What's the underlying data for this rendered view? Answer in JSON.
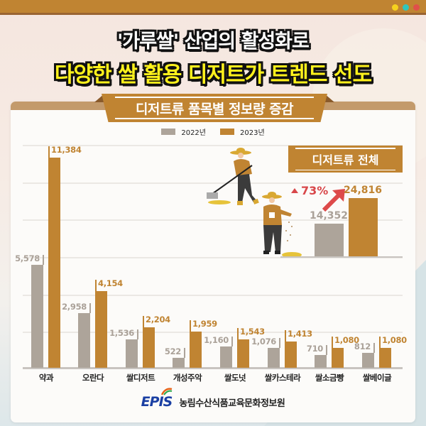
{
  "header": {
    "dots": [
      {
        "name": "yellow",
        "color": "#f5d21e"
      },
      {
        "name": "teal",
        "color": "#31c6bd"
      },
      {
        "name": "red",
        "color": "#e0504a"
      }
    ],
    "title_line1": "'가루쌀' 산업의 활성화로",
    "title_line2": "다양한 쌀 활용 디저트가 트렌드 선도"
  },
  "section": {
    "ribbon_title": "디저트류 품목별 정보량 증감"
  },
  "legend": [
    {
      "label": "2022년",
      "color": "#ada49a"
    },
    {
      "label": "2023년",
      "color": "#c08432"
    }
  ],
  "total": {
    "label": "디저트류 전체",
    "value_2022": "14,352",
    "value_2023": "24,816",
    "growth": "73%"
  },
  "bars": [
    {
      "category": "약과",
      "v2022": "5,578",
      "v2023": "11,384"
    },
    {
      "category": "오란다",
      "v2022": "2,958",
      "v2023": "4,154"
    },
    {
      "category": "쌀디저트",
      "v2022": "1,536",
      "v2023": "2,204"
    },
    {
      "category": "개성주악",
      "v2022": "522",
      "v2023": "1,959"
    },
    {
      "category": "쌀도넛",
      "v2022": "1,160",
      "v2023": "1,543"
    },
    {
      "category": "쌀카스테라",
      "v2022": "1,076",
      "v2023": "1,413"
    },
    {
      "category": "쌀소금빵",
      "v2022": "710",
      "v2023": "1,080"
    },
    {
      "category": "쌀베이글",
      "v2022": "812",
      "v2023": "1,080"
    }
  ],
  "footer": {
    "logo_text": "EPIS",
    "organization": "농림수산식품교육문화정보원"
  },
  "chart_data": [
    {
      "type": "bar",
      "title": "디저트류 품목별 정보량 증감",
      "categories": [
        "약과",
        "오란다",
        "쌀디저트",
        "개성주악",
        "쌀도넛",
        "쌀카스테라",
        "쌀소금빵",
        "쌀베이글"
      ],
      "series": [
        {
          "name": "2022년",
          "color": "#ada49a",
          "values": [
            5578,
            2958,
            1536,
            522,
            1160,
            1076,
            710,
            812
          ]
        },
        {
          "name": "2023년",
          "color": "#c08432",
          "values": [
            11384,
            4154,
            2204,
            1959,
            1543,
            1413,
            1080,
            1080
          ]
        }
      ],
      "xlabel": "",
      "ylabel": "",
      "ylim": [
        0,
        12000
      ],
      "grid": true,
      "legend_position": "top"
    },
    {
      "type": "bar",
      "title": "디저트류 전체",
      "categories": [
        "2022년",
        "2023년"
      ],
      "values": [
        14352,
        24816
      ],
      "annotation": "▲ 73%"
    }
  ]
}
